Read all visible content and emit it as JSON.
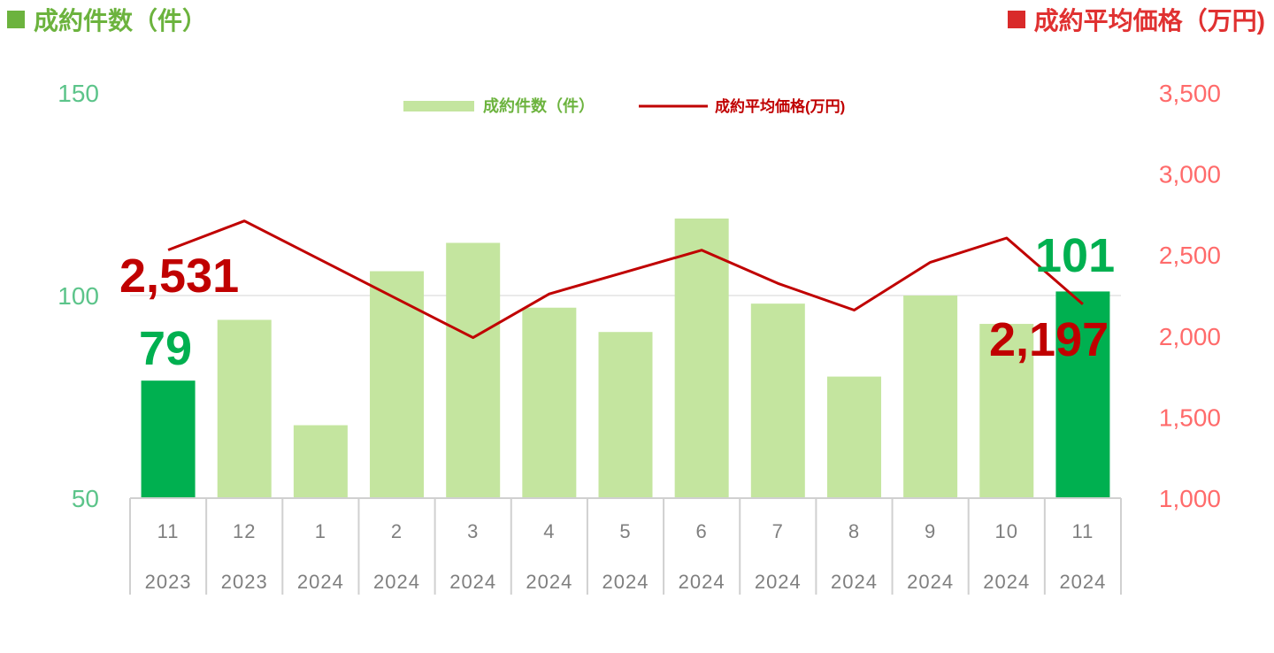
{
  "header": {
    "left_title": "成約件数（件）",
    "right_title": "成約平均価格（万円)"
  },
  "colors": {
    "bar": "#c4e59f",
    "bar_highlight": "#00b050",
    "line": "#c00000",
    "left_axis": "#5cc48a",
    "right_axis": "#ff6b6b",
    "header_left": "#6cb33e",
    "header_right": "#d92a2a"
  },
  "chart_data": {
    "type": "bar",
    "categories": [
      "11",
      "12",
      "1",
      "2",
      "3",
      "4",
      "5",
      "6",
      "7",
      "8",
      "9",
      "10",
      "11"
    ],
    "years": [
      "2023",
      "2023",
      "2024",
      "2024",
      "2024",
      "2024",
      "2024",
      "2024",
      "2024",
      "2024",
      "2024",
      "2024",
      "2024"
    ],
    "series": [
      {
        "name": "成約件数（件）",
        "type": "bar",
        "axis": "left",
        "values": [
          79,
          94,
          68,
          106,
          113,
          97,
          91,
          119,
          98,
          80,
          100,
          93,
          101
        ],
        "highlight": [
          0,
          12
        ]
      },
      {
        "name": "成約平均価格(万円)",
        "type": "line",
        "axis": "right",
        "values": [
          2531,
          2710,
          2470,
          2230,
          1990,
          2260,
          2395,
          2530,
          2325,
          2160,
          2455,
          2605,
          2197
        ]
      }
    ],
    "y_left": {
      "min": 50,
      "max": 150,
      "ticks": [
        "50",
        "100",
        "150"
      ]
    },
    "y_right": {
      "min": 1000,
      "max": 3500,
      "ticks": [
        "1,000",
        "1,500",
        "2,000",
        "2,500",
        "3,000",
        "3,500"
      ]
    },
    "callouts": {
      "first_bar": "79",
      "last_bar": "101",
      "first_price": "2,531",
      "last_price": "2,197"
    },
    "legend": {
      "position": "top-center"
    },
    "grid": true
  }
}
